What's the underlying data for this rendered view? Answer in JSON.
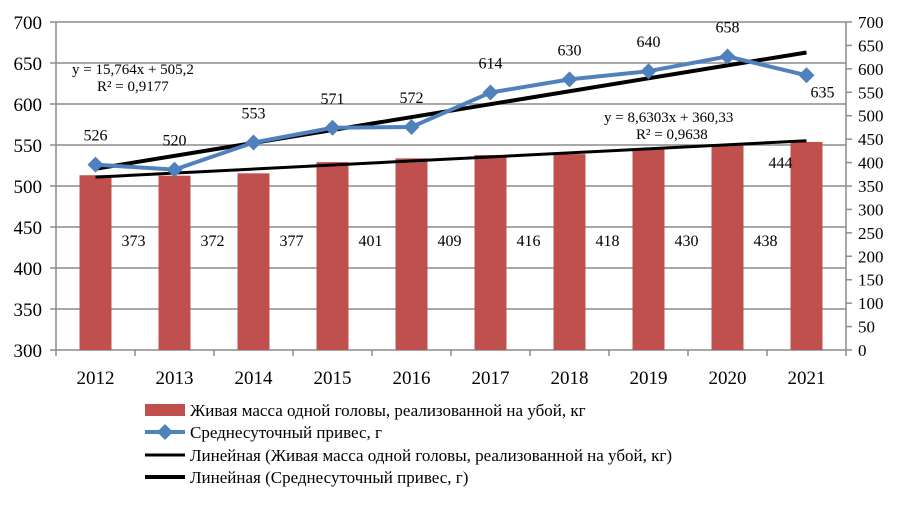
{
  "chart_data": {
    "type": "bar+line",
    "categories": [
      "2012",
      "2013",
      "2014",
      "2015",
      "2016",
      "2017",
      "2018",
      "2019",
      "2020",
      "2021"
    ],
    "series": [
      {
        "name": "Живая масса одной головы, реализованной на убой, кг",
        "kind": "bar",
        "axis": "right",
        "color": "#C0504D",
        "values": [
          373,
          372,
          377,
          401,
          409,
          416,
          418,
          430,
          438,
          444
        ]
      },
      {
        "name": "Среднесуточный привес, г",
        "kind": "line",
        "axis": "left",
        "color": "#4F81BD",
        "marker": "diamond",
        "values": [
          526,
          520,
          553,
          571,
          572,
          614,
          630,
          640,
          658,
          635
        ]
      }
    ],
    "trendlines": [
      {
        "name": "Линейная (Живая масса одной головы, реализованной на убой, кг)",
        "slope": 8.6303,
        "intercept": 360.33,
        "axis": "right",
        "equation": "y = 8,6303x + 360,33",
        "r2": "R² = 0,9638",
        "color": "#000000"
      },
      {
        "name": "Линейная (Среднесуточный привес, г)",
        "slope": 15.764,
        "intercept": 505.2,
        "axis": "left",
        "equation": "y = 15,764x + 505,2",
        "r2": "R² = 0,9177",
        "color": "#000000"
      }
    ],
    "left_axis": {
      "min": 300,
      "max": 700,
      "step": 50
    },
    "right_axis": {
      "min": 0,
      "max": 700,
      "step": 50
    },
    "grid": true,
    "legend": "bottom"
  }
}
